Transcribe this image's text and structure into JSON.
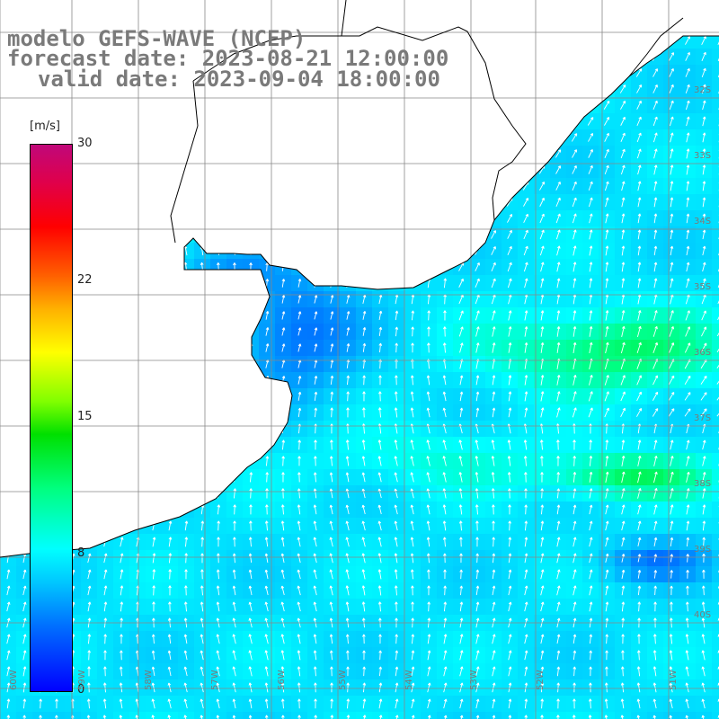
{
  "title": {
    "line1": "modelo GEFS-WAVE (NCEP)",
    "line2": "forecast date: 2023-08-21 12:00:00",
    "line3": "valid date: 2023-09-04 18:00:00"
  },
  "colorbar": {
    "unit": "[m/s]",
    "ticks": [
      "30",
      "22",
      "15",
      "8",
      "0"
    ],
    "range": [
      0,
      30
    ]
  },
  "grid": {
    "lat_labels": [
      "32S",
      "33S",
      "34S",
      "35S",
      "36S",
      "37S",
      "38S",
      "39S",
      "40S"
    ],
    "lon_labels": [
      "60W",
      "59W",
      "58W",
      "57W",
      "56W",
      "55W",
      "54W",
      "53W",
      "52W",
      "51W"
    ]
  },
  "colors": {
    "land": "#ffffff",
    "coast": "#000000",
    "grid": "#888888",
    "title": "#7a7a7a"
  }
}
